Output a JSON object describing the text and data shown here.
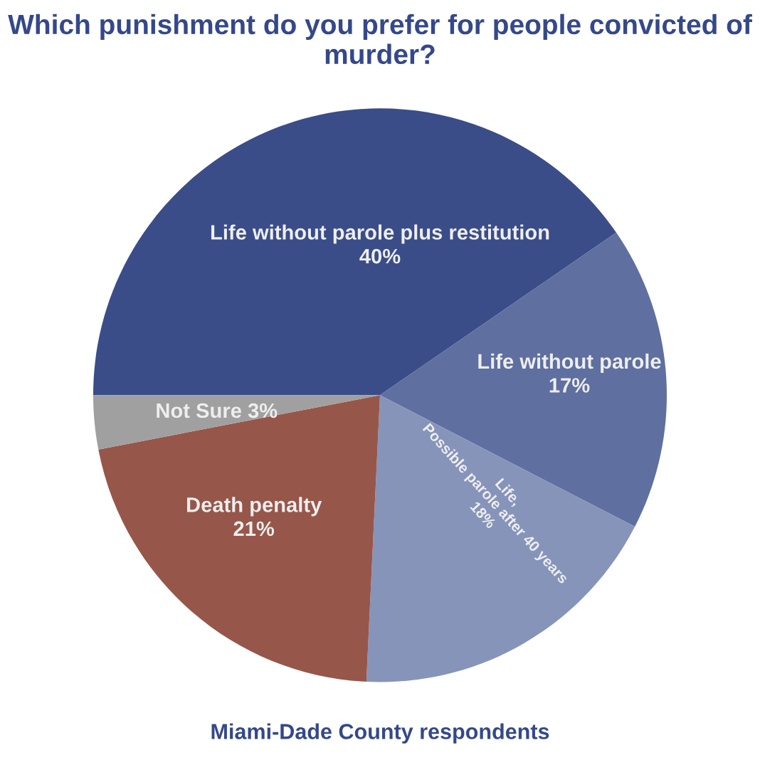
{
  "chart_data": {
    "type": "pie",
    "title": "Which punishment do you prefer for people convicted of murder?",
    "categories": [
      "Life without parole plus restitution",
      "Life without parole",
      "Life,\nPossible parole after 40 years",
      "Death penalty",
      "Not Sure"
    ],
    "values": [
      40,
      17,
      18,
      21,
      3
    ],
    "value_labels": [
      "40%",
      "17%",
      "18%",
      "21%",
      "3%"
    ],
    "colors": [
      "#3a4d89",
      "#5e6fa0",
      "#8694ba",
      "#97564a",
      "#a0a0a0"
    ],
    "annotations": [
      "Miami-Dade County respondents"
    ]
  }
}
